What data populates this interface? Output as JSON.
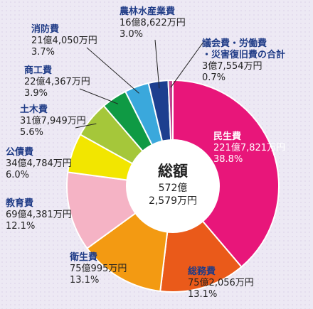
{
  "chart_data": {
    "type": "pie",
    "center_label": {
      "title": "総額",
      "line1": "572億",
      "line2": "2,579万円"
    },
    "slices": [
      {
        "name": "民生費",
        "amount": "221億7,821万円",
        "percent": 38.8,
        "percent_label": "38.8%",
        "color": "#e8167a"
      },
      {
        "name": "総務費",
        "amount": "75億2,056万円",
        "percent": 13.1,
        "percent_label": "13.1%",
        "color": "#ea5a1a"
      },
      {
        "name": "衛生費",
        "amount": "75億995万円",
        "percent": 13.1,
        "percent_label": "13.1%",
        "color": "#f39a12"
      },
      {
        "name": "教育費",
        "amount": "69億4,381万円",
        "percent": 12.1,
        "percent_label": "12.1%",
        "color": "#f5b3c5"
      },
      {
        "name": "公債費",
        "amount": "34億4,784万円",
        "percent": 6.0,
        "percent_label": "6.0%",
        "color": "#f2e600"
      },
      {
        "name": "土木費",
        "amount": "31億7,949万円",
        "percent": 5.6,
        "percent_label": "5.6%",
        "color": "#a5c73a"
      },
      {
        "name": "商工費",
        "amount": "22億4,367万円",
        "percent": 3.9,
        "percent_label": "3.9%",
        "color": "#0f9a44"
      },
      {
        "name": "消防費",
        "amount": "21億4,050万円",
        "percent": 3.7,
        "percent_label": "3.7%",
        "color": "#3aa8dc"
      },
      {
        "name": "農林水産業費",
        "amount": "16億8,622万円",
        "percent": 3.0,
        "percent_label": "3.0%",
        "color": "#1d3f8f"
      },
      {
        "name_lines": [
          "議会費・労働費",
          "・災害復旧費の合計"
        ],
        "amount": "3億7,554万円",
        "percent": 0.7,
        "percent_label": "0.7%",
        "color": "#c2448e"
      }
    ]
  }
}
